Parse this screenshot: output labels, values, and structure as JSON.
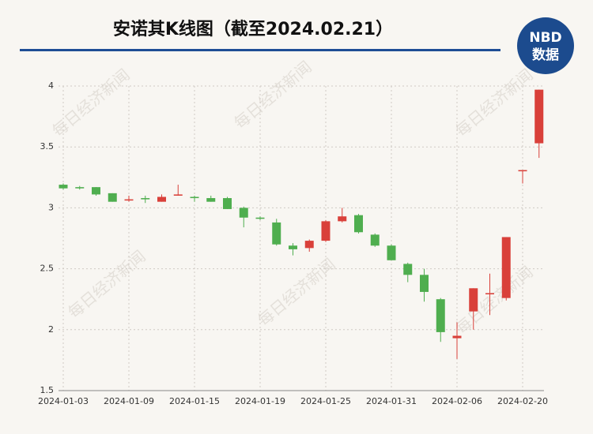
{
  "chart_data": {
    "type": "candlestick",
    "title": "安诺其K线图（截至2024.02.21）",
    "categories": [
      "2024-01-03",
      null,
      null,
      null,
      "2024-01-09",
      null,
      null,
      null,
      "2024-01-15",
      null,
      null,
      null,
      "2024-01-19",
      null,
      null,
      null,
      "2024-01-25",
      null,
      null,
      null,
      "2024-01-31",
      null,
      null,
      null,
      "2024-02-06",
      null,
      null,
      null,
      "2024-02-20",
      null
    ],
    "series": [
      {
        "open": [
          3.19,
          3.17,
          3.17,
          3.12,
          3.06,
          3.08,
          3.05,
          3.1,
          3.09,
          3.08,
          3.08,
          3.0,
          2.92,
          2.88,
          2.69,
          2.67,
          2.73,
          2.89,
          2.94,
          2.78,
          2.69,
          2.54,
          2.45,
          2.25,
          1.93,
          2.15,
          2.29,
          2.26,
          3.3,
          3.53
        ],
        "high": [
          3.2,
          3.18,
          3.17,
          3.12,
          3.1,
          3.1,
          3.11,
          3.19,
          3.1,
          3.1,
          3.09,
          3.01,
          2.93,
          2.91,
          2.71,
          2.74,
          2.9,
          3.0,
          2.95,
          2.79,
          2.7,
          2.55,
          2.5,
          2.26,
          2.06,
          2.34,
          2.46,
          2.76,
          3.31,
          3.97
        ],
        "low": [
          3.15,
          3.15,
          3.1,
          3.05,
          3.05,
          3.04,
          3.05,
          3.1,
          3.05,
          3.05,
          2.99,
          2.84,
          2.9,
          2.69,
          2.61,
          2.64,
          2.72,
          2.88,
          2.79,
          2.68,
          2.57,
          2.39,
          2.23,
          1.9,
          1.76,
          2.0,
          2.12,
          2.24,
          3.2,
          3.41
        ],
        "close": [
          3.16,
          3.16,
          3.11,
          3.05,
          3.07,
          3.07,
          3.09,
          3.11,
          3.08,
          3.05,
          2.99,
          2.92,
          2.91,
          2.7,
          2.66,
          2.73,
          2.89,
          2.93,
          2.8,
          2.69,
          2.57,
          2.45,
          2.31,
          1.98,
          1.95,
          2.34,
          2.3,
          2.76,
          3.31,
          3.97
        ]
      }
    ],
    "up_color": "#d9403a",
    "down_color": "#4fae4f",
    "ylim": [
      1.5,
      4
    ],
    "yticks": [
      1.5,
      2,
      2.5,
      3,
      3.5,
      4
    ],
    "grid": true
  },
  "logo": {
    "top": "NBD",
    "bottom": "数据"
  },
  "watermark": "每日经济新闻"
}
